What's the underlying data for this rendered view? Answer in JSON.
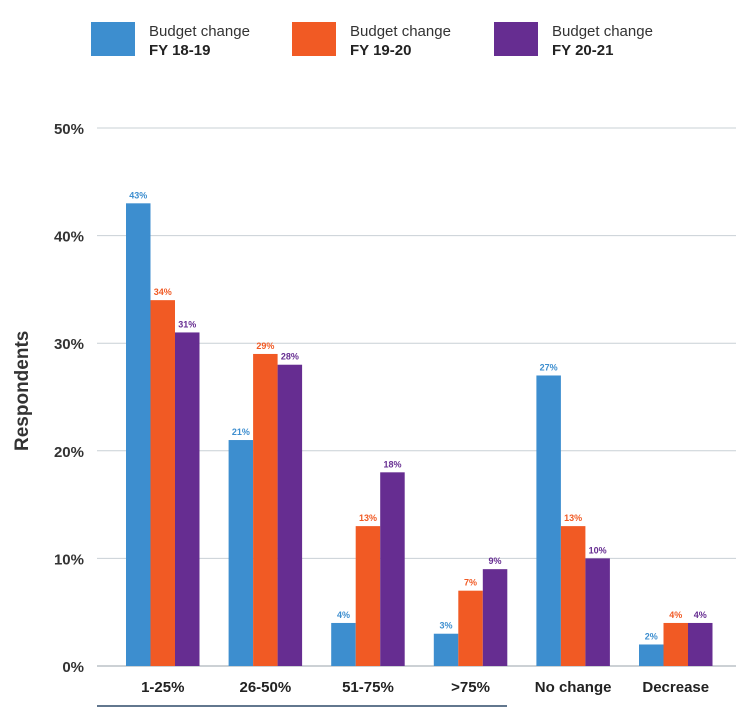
{
  "chart_data": {
    "type": "bar",
    "ylabel": "Respondents",
    "ylim": [
      0,
      50
    ],
    "yticks": [
      "0%",
      "10%",
      "20%",
      "30%",
      "40%",
      "50%"
    ],
    "grid": true,
    "legend_position": "top",
    "categories": [
      "1-25%",
      "26-50%",
      "51-75%",
      ">75%",
      "No change",
      "Decrease"
    ],
    "series": [
      {
        "name": "Budget change FY 18-19",
        "label_line1": "Budget change",
        "label_line2": "FY 18-19",
        "color": "#3d8ecf",
        "values": [
          43,
          21,
          4,
          3,
          27,
          2
        ]
      },
      {
        "name": "Budget change FY 19-20",
        "label_line1": "Budget change",
        "label_line2": "FY 19-20",
        "color": "#f15a24",
        "values": [
          34,
          29,
          13,
          7,
          13,
          4
        ]
      },
      {
        "name": "Budget change FY 20-21",
        "label_line1": "Budget change",
        "label_line2": "FY 20-21",
        "color": "#662d91",
        "values": [
          31,
          28,
          18,
          9,
          10,
          4
        ]
      }
    ]
  }
}
